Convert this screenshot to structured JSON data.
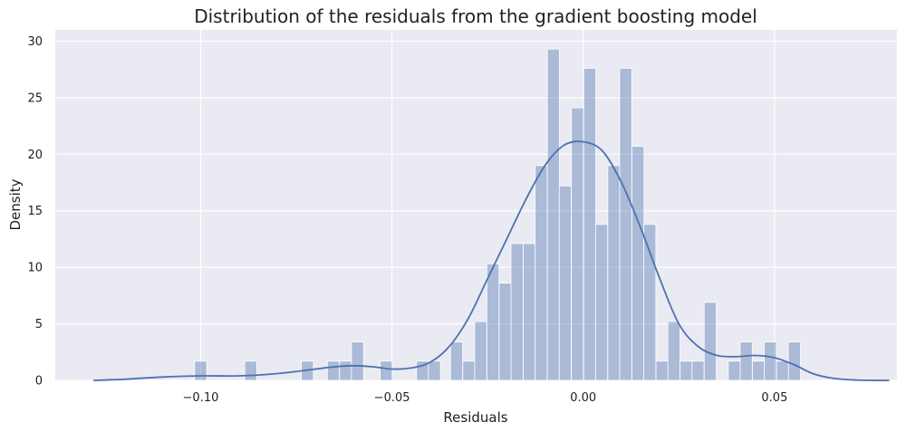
{
  "chart_data": {
    "type": "bar",
    "title": "Distribution of the residuals from the gradient boosting model",
    "xlabel": "Residuals",
    "ylabel": "Density",
    "xlim": [
      -0.138,
      0.082
    ],
    "ylim": [
      0,
      31
    ],
    "xticks": [
      -0.1,
      -0.05,
      0.0,
      0.05
    ],
    "xtick_labels": [
      "−0.10",
      "−0.05",
      "0.00",
      "0.05"
    ],
    "yticks": [
      0,
      5,
      10,
      15,
      20,
      25,
      30
    ],
    "ytick_labels": [
      "0",
      "5",
      "10",
      "15",
      "20",
      "25",
      "30"
    ],
    "grid": true,
    "bar_color": "#4c72b0",
    "bar_opacity": 0.4,
    "kde_color": "#4c72b0",
    "background": "#eaeaf2",
    "bin_width": 0.00316,
    "bins": [
      {
        "x": -0.1,
        "density": 1.7
      },
      {
        "x": -0.0869,
        "density": 1.7
      },
      {
        "x": -0.0721,
        "density": 1.7
      },
      {
        "x": -0.0653,
        "density": 1.7
      },
      {
        "x": -0.0621,
        "density": 1.7
      },
      {
        "x": -0.059,
        "density": 3.4
      },
      {
        "x": -0.0515,
        "density": 1.7
      },
      {
        "x": -0.042,
        "density": 1.7
      },
      {
        "x": -0.0389,
        "density": 1.7
      },
      {
        "x": -0.0331,
        "density": 3.4
      },
      {
        "x": -0.0299,
        "density": 1.7
      },
      {
        "x": -0.0268,
        "density": 5.2
      },
      {
        "x": -0.0236,
        "density": 10.3
      },
      {
        "x": -0.0204,
        "density": 8.6
      },
      {
        "x": -0.0173,
        "density": 12.1
      },
      {
        "x": -0.0141,
        "density": 12.1
      },
      {
        "x": -0.011,
        "density": 19.0
      },
      {
        "x": -0.0078,
        "density": 29.3
      },
      {
        "x": -0.0047,
        "density": 17.2
      },
      {
        "x": -0.0015,
        "density": 24.1
      },
      {
        "x": 0.0017,
        "density": 27.6
      },
      {
        "x": 0.0048,
        "density": 13.8
      },
      {
        "x": 0.008,
        "density": 19.0
      },
      {
        "x": 0.0111,
        "density": 27.6
      },
      {
        "x": 0.0143,
        "density": 20.7
      },
      {
        "x": 0.0174,
        "density": 13.8
      },
      {
        "x": 0.0206,
        "density": 1.7
      },
      {
        "x": 0.0237,
        "density": 5.2
      },
      {
        "x": 0.0269,
        "density": 1.7
      },
      {
        "x": 0.03,
        "density": 1.7
      },
      {
        "x": 0.0332,
        "density": 6.9
      },
      {
        "x": 0.0395,
        "density": 1.7
      },
      {
        "x": 0.0426,
        "density": 3.4
      },
      {
        "x": 0.0458,
        "density": 1.7
      },
      {
        "x": 0.0489,
        "density": 3.4
      },
      {
        "x": 0.0521,
        "density": 1.7
      },
      {
        "x": 0.0552,
        "density": 3.4
      }
    ],
    "kde": {
      "x": [
        -0.128,
        -0.12,
        -0.11,
        -0.1,
        -0.09,
        -0.08,
        -0.07,
        -0.065,
        -0.06,
        -0.055,
        -0.05,
        -0.045,
        -0.04,
        -0.035,
        -0.03,
        -0.025,
        -0.02,
        -0.015,
        -0.01,
        -0.005,
        0.0,
        0.005,
        0.01,
        0.015,
        0.02,
        0.025,
        0.03,
        0.035,
        0.04,
        0.045,
        0.05,
        0.055,
        0.06,
        0.065,
        0.07,
        0.075,
        0.08
      ],
      "y": [
        0.0,
        0.1,
        0.3,
        0.4,
        0.4,
        0.6,
        1.0,
        1.2,
        1.3,
        1.2,
        1.0,
        1.1,
        1.6,
        3.0,
        5.5,
        9.0,
        12.5,
        16.0,
        19.0,
        20.8,
        21.1,
        20.3,
        17.5,
        13.5,
        9.0,
        5.0,
        3.0,
        2.2,
        2.1,
        2.2,
        2.0,
        1.4,
        0.6,
        0.2,
        0.05,
        0.0,
        0.0
      ]
    }
  }
}
